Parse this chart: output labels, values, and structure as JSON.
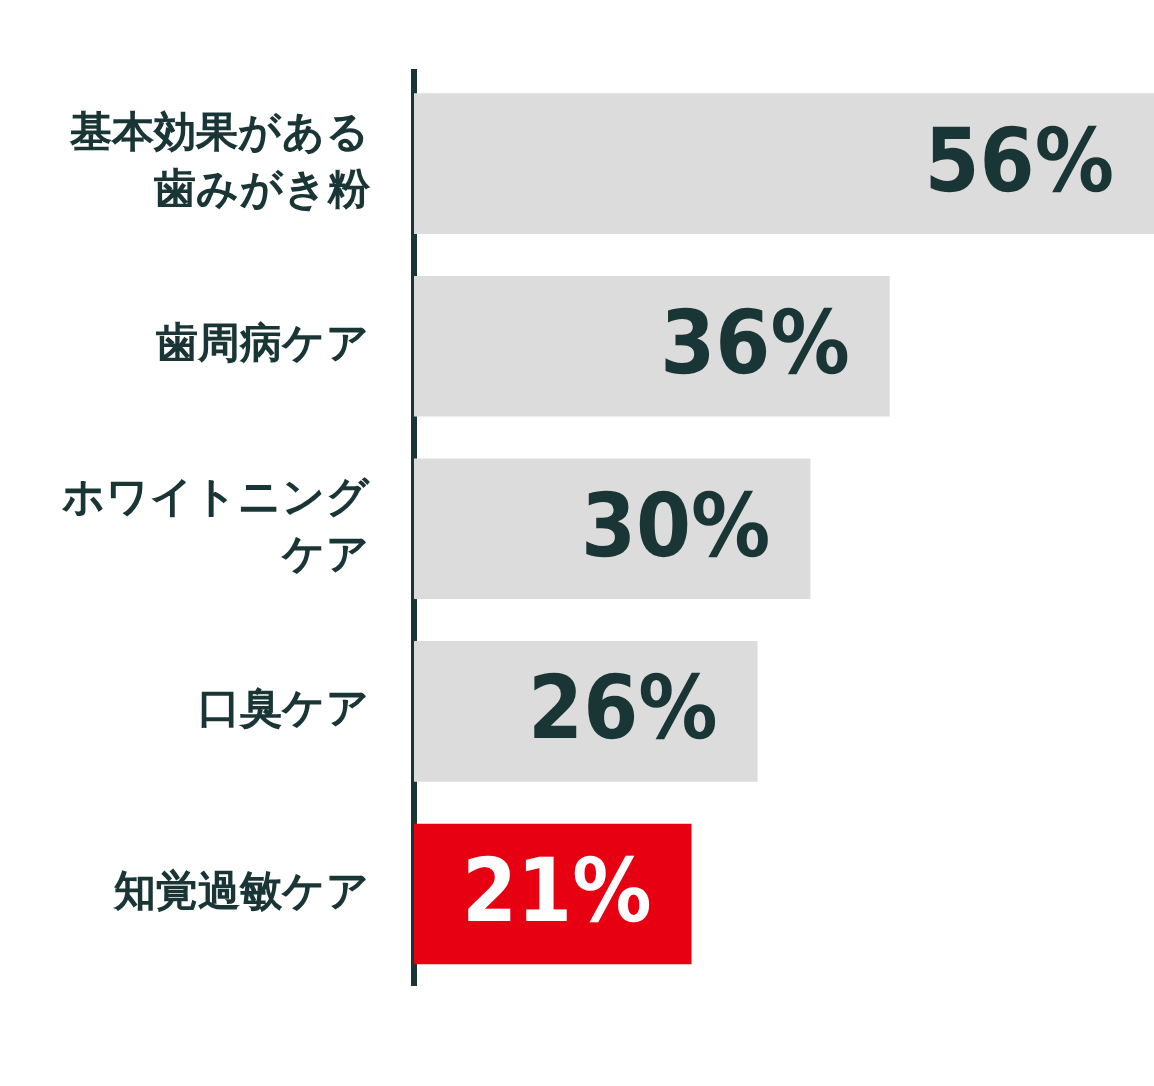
{
  "chart_data": {
    "type": "bar",
    "orientation": "horizontal",
    "categories": [
      "基本効果がある歯みがき粉",
      "歯周病ケア",
      "ホワイトニングケア",
      "口臭ケア",
      "知覚過敏ケア"
    ],
    "values": [
      56,
      36,
      30,
      26,
      21
    ],
    "colors": [
      "#dcdcdc",
      "#dcdcdc",
      "#dcdcdc",
      "#dcdcdc",
      "#e60012"
    ],
    "value_labels": [
      "56%",
      "36%",
      "30%",
      "26%",
      "21%"
    ],
    "grid": false,
    "legend": false,
    "tick_labels": "y"
  }
}
